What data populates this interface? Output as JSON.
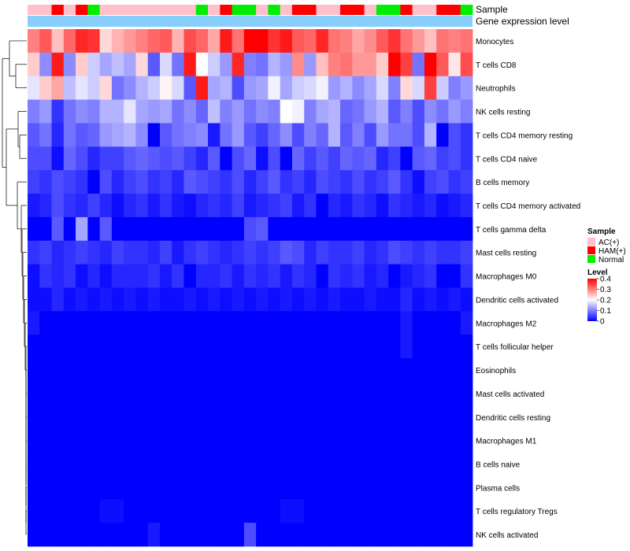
{
  "chart_data": {
    "type": "heatmap",
    "title": "",
    "annotation_tracks": [
      "Sample",
      "Gene expression level"
    ],
    "rows": [
      "Monocytes",
      "T cells CD8",
      "Neutrophils",
      "NK cells resting",
      "T cells CD4 memory resting",
      "T cells CD4 naive",
      "B cells memory",
      "T cells CD4 memory activated",
      "T cells gamma delta",
      "Mast cells resting",
      "Macrophages M0",
      "Dendritic cells activated",
      "Macrophages M2",
      "T cells follicular helper",
      "Eosinophils",
      "Mast cells activated",
      "Dendritic cells resting",
      "Macrophages M1",
      "B cells naive",
      "Plasma cells",
      "T cells regulatory  Tregs",
      "NK cells activated"
    ],
    "sample_groups": [
      "AC",
      "AC",
      "HAM",
      "AC",
      "HAM",
      "N",
      "AC",
      "AC",
      "AC",
      "AC",
      "AC",
      "AC",
      "AC",
      "AC",
      "N",
      "AC",
      "HAM",
      "N",
      "N",
      "AC",
      "N",
      "AC",
      "HAM",
      "HAM",
      "AC",
      "AC",
      "HAM",
      "HAM",
      "AC",
      "N",
      "N",
      "HAM",
      "AC",
      "AC",
      "HAM",
      "HAM",
      "N"
    ],
    "values": [
      [
        0.3,
        0.33,
        0.25,
        0.32,
        0.37,
        0.36,
        0.23,
        0.26,
        0.28,
        0.3,
        0.32,
        0.33,
        0.26,
        0.34,
        0.32,
        0.27,
        0.38,
        0.31,
        0.4,
        0.4,
        0.36,
        0.38,
        0.33,
        0.32,
        0.37,
        0.31,
        0.3,
        0.27,
        0.29,
        0.33,
        0.36,
        0.31,
        0.28,
        0.25,
        0.31,
        0.3,
        0.31
      ],
      [
        0.24,
        0.11,
        0.38,
        0.11,
        0.24,
        0.16,
        0.13,
        0.15,
        0.13,
        0.23,
        0.07,
        0.17,
        0.09,
        0.38,
        0.2,
        0.16,
        0.12,
        0.37,
        0.1,
        0.09,
        0.14,
        0.12,
        0.29,
        0.12,
        0.25,
        0.3,
        0.31,
        0.28,
        0.28,
        0.24,
        0.4,
        0.35,
        0.09,
        0.4,
        0.33,
        0.22,
        0.34
      ],
      [
        0.18,
        0.24,
        0.27,
        0.15,
        0.18,
        0.16,
        0.23,
        0.09,
        0.11,
        0.14,
        0.16,
        0.21,
        0.17,
        0.07,
        0.38,
        0.13,
        0.14,
        0.06,
        0.12,
        0.13,
        0.19,
        0.13,
        0.16,
        0.17,
        0.19,
        0.12,
        0.14,
        0.11,
        0.13,
        0.17,
        0.1,
        0.23,
        0.17,
        0.35,
        0.16,
        0.1,
        0.12
      ],
      [
        0.1,
        0.12,
        0.04,
        0.09,
        0.11,
        0.1,
        0.14,
        0.14,
        0.18,
        0.13,
        0.12,
        0.13,
        0.09,
        0.11,
        0.08,
        0.15,
        0.1,
        0.12,
        0.09,
        0.11,
        0.1,
        0.2,
        0.19,
        0.1,
        0.13,
        0.14,
        0.08,
        0.09,
        0.12,
        0.14,
        0.07,
        0.1,
        0.06,
        0.11,
        0.09,
        0.12,
        0.1
      ],
      [
        0.07,
        0.09,
        0.03,
        0.09,
        0.07,
        0.08,
        0.12,
        0.13,
        0.14,
        0.11,
        0.0,
        0.07,
        0.09,
        0.1,
        0.11,
        0.02,
        0.09,
        0.12,
        0.07,
        0.05,
        0.08,
        0.11,
        0.06,
        0.1,
        0.08,
        0.14,
        0.07,
        0.1,
        0.06,
        0.12,
        0.09,
        0.09,
        0.06,
        0.14,
        0.0,
        0.06,
        0.04
      ],
      [
        0.06,
        0.06,
        0.01,
        0.08,
        0.06,
        0.03,
        0.05,
        0.05,
        0.07,
        0.08,
        0.07,
        0.06,
        0.07,
        0.05,
        0.03,
        0.07,
        0.0,
        0.06,
        0.08,
        0.01,
        0.06,
        0.0,
        0.08,
        0.05,
        0.07,
        0.05,
        0.08,
        0.07,
        0.08,
        0.03,
        0.05,
        0.0,
        0.07,
        0.08,
        0.05,
        0.06,
        0.04
      ],
      [
        0.05,
        0.04,
        0.06,
        0.05,
        0.04,
        0.0,
        0.06,
        0.03,
        0.05,
        0.06,
        0.04,
        0.05,
        0.03,
        0.07,
        0.06,
        0.05,
        0.04,
        0.06,
        0.03,
        0.05,
        0.07,
        0.04,
        0.05,
        0.03,
        0.06,
        0.05,
        0.04,
        0.06,
        0.04,
        0.05,
        0.07,
        0.04,
        0.01,
        0.05,
        0.06,
        0.04,
        0.05
      ],
      [
        0.02,
        0.03,
        0.06,
        0.04,
        0.03,
        0.05,
        0.03,
        0.01,
        0.03,
        0.04,
        0.02,
        0.04,
        0.02,
        0.01,
        0.03,
        0.04,
        0.03,
        0.05,
        0.02,
        0.03,
        0.04,
        0.05,
        0.02,
        0.04,
        0.0,
        0.03,
        0.02,
        0.04,
        0.03,
        0.01,
        0.04,
        0.03,
        0.02,
        0.03,
        0.01,
        0.02,
        0.03
      ],
      [
        0.0,
        0.0,
        0.07,
        0.0,
        0.13,
        0.0,
        0.07,
        0.0,
        0.0,
        0.0,
        0.0,
        0.0,
        0.0,
        0.0,
        0.0,
        0.0,
        0.0,
        0.0,
        0.06,
        0.07,
        0.0,
        0.0,
        0.0,
        0.0,
        0.0,
        0.0,
        0.0,
        0.0,
        0.0,
        0.0,
        0.0,
        0.0,
        0.0,
        0.0,
        0.0,
        0.0,
        0.0
      ],
      [
        0.04,
        0.05,
        0.03,
        0.04,
        0.05,
        0.04,
        0.03,
        0.05,
        0.04,
        0.04,
        0.03,
        0.05,
        0.02,
        0.04,
        0.05,
        0.04,
        0.03,
        0.04,
        0.05,
        0.04,
        0.05,
        0.07,
        0.06,
        0.03,
        0.05,
        0.04,
        0.04,
        0.05,
        0.03,
        0.04,
        0.06,
        0.05,
        0.04,
        0.05,
        0.04,
        0.04,
        0.05
      ],
      [
        0.01,
        0.04,
        0.03,
        0.04,
        0.01,
        0.03,
        0.01,
        0.03,
        0.03,
        0.03,
        0.04,
        0.02,
        0.04,
        0.0,
        0.03,
        0.03,
        0.04,
        0.02,
        0.04,
        0.03,
        0.04,
        0.02,
        0.04,
        0.03,
        0.0,
        0.04,
        0.03,
        0.04,
        0.02,
        0.03,
        0.0,
        0.02,
        0.03,
        0.04,
        0.0,
        0.0,
        0.04
      ],
      [
        0.01,
        0.01,
        0.03,
        0.01,
        0.02,
        0.01,
        0.02,
        0.01,
        0.02,
        0.01,
        0.02,
        0.01,
        0.01,
        0.02,
        0.01,
        0.02,
        0.01,
        0.02,
        0.01,
        0.02,
        0.01,
        0.02,
        0.01,
        0.02,
        0.01,
        0.02,
        0.01,
        0.01,
        0.02,
        0.01,
        0.01,
        0.03,
        0.01,
        0.02,
        0.01,
        0.02,
        0.01
      ],
      [
        0.02,
        0.0,
        0.0,
        0.0,
        0.0,
        0.0,
        0.0,
        0.0,
        0.0,
        0.0,
        0.0,
        0.0,
        0.0,
        0.0,
        0.0,
        0.0,
        0.0,
        0.0,
        0.0,
        0.0,
        0.0,
        0.0,
        0.0,
        0.0,
        0.0,
        0.0,
        0.0,
        0.0,
        0.0,
        0.0,
        0.0,
        0.02,
        0.0,
        0.0,
        0.0,
        0.0,
        0.02
      ],
      [
        0.0,
        0.0,
        0.0,
        0.0,
        0.0,
        0.0,
        0.0,
        0.0,
        0.0,
        0.0,
        0.0,
        0.0,
        0.0,
        0.0,
        0.0,
        0.0,
        0.0,
        0.0,
        0.0,
        0.0,
        0.0,
        0.0,
        0.0,
        0.0,
        0.0,
        0.0,
        0.0,
        0.0,
        0.0,
        0.0,
        0.0,
        0.02,
        0.0,
        0.0,
        0.0,
        0.0,
        0.0
      ],
      [
        0.0,
        0.0,
        0.0,
        0.0,
        0.0,
        0.0,
        0.0,
        0.0,
        0.0,
        0.0,
        0.0,
        0.0,
        0.0,
        0.0,
        0.0,
        0.0,
        0.0,
        0.0,
        0.0,
        0.0,
        0.0,
        0.0,
        0.0,
        0.0,
        0.0,
        0.0,
        0.0,
        0.0,
        0.0,
        0.0,
        0.0,
        0.0,
        0.0,
        0.0,
        0.0,
        0.0,
        0.0
      ],
      [
        0.0,
        0.0,
        0.0,
        0.0,
        0.0,
        0.0,
        0.0,
        0.0,
        0.0,
        0.0,
        0.0,
        0.0,
        0.0,
        0.0,
        0.0,
        0.0,
        0.0,
        0.0,
        0.0,
        0.0,
        0.0,
        0.0,
        0.0,
        0.0,
        0.0,
        0.0,
        0.0,
        0.0,
        0.0,
        0.0,
        0.0,
        0.0,
        0.0,
        0.0,
        0.0,
        0.0,
        0.0
      ],
      [
        0.0,
        0.0,
        0.0,
        0.0,
        0.0,
        0.0,
        0.0,
        0.0,
        0.0,
        0.0,
        0.0,
        0.0,
        0.0,
        0.0,
        0.0,
        0.0,
        0.0,
        0.0,
        0.0,
        0.0,
        0.0,
        0.0,
        0.0,
        0.0,
        0.0,
        0.0,
        0.0,
        0.0,
        0.0,
        0.0,
        0.0,
        0.0,
        0.0,
        0.0,
        0.0,
        0.0,
        0.0
      ],
      [
        0.0,
        0.0,
        0.0,
        0.0,
        0.0,
        0.0,
        0.0,
        0.0,
        0.0,
        0.0,
        0.0,
        0.0,
        0.0,
        0.0,
        0.0,
        0.0,
        0.0,
        0.0,
        0.0,
        0.0,
        0.0,
        0.0,
        0.0,
        0.0,
        0.0,
        0.0,
        0.0,
        0.0,
        0.0,
        0.0,
        0.0,
        0.0,
        0.0,
        0.0,
        0.0,
        0.0,
        0.0
      ],
      [
        0.0,
        0.0,
        0.0,
        0.0,
        0.0,
        0.0,
        0.0,
        0.0,
        0.0,
        0.0,
        0.0,
        0.0,
        0.0,
        0.0,
        0.0,
        0.0,
        0.0,
        0.0,
        0.0,
        0.0,
        0.0,
        0.0,
        0.0,
        0.0,
        0.0,
        0.0,
        0.0,
        0.0,
        0.0,
        0.0,
        0.0,
        0.0,
        0.0,
        0.0,
        0.0,
        0.0,
        0.0
      ],
      [
        0.0,
        0.0,
        0.0,
        0.0,
        0.0,
        0.0,
        0.0,
        0.0,
        0.0,
        0.0,
        0.0,
        0.0,
        0.0,
        0.0,
        0.0,
        0.0,
        0.0,
        0.0,
        0.0,
        0.0,
        0.0,
        0.0,
        0.0,
        0.0,
        0.0,
        0.0,
        0.0,
        0.0,
        0.0,
        0.0,
        0.0,
        0.0,
        0.0,
        0.0,
        0.0,
        0.0,
        0.0
      ],
      [
        0.0,
        0.0,
        0.0,
        0.0,
        0.0,
        0.0,
        0.01,
        0.01,
        0.0,
        0.0,
        0.0,
        0.0,
        0.0,
        0.0,
        0.0,
        0.0,
        0.0,
        0.0,
        0.0,
        0.0,
        0.0,
        0.01,
        0.01,
        0.0,
        0.0,
        0.0,
        0.0,
        0.0,
        0.0,
        0.0,
        0.0,
        0.0,
        0.0,
        0.0,
        0.0,
        0.0,
        0.0
      ],
      [
        0.0,
        0.0,
        0.0,
        0.0,
        0.0,
        0.0,
        0.0,
        0.0,
        0.0,
        0.0,
        0.02,
        0.0,
        0.0,
        0.0,
        0.0,
        0.0,
        0.0,
        0.0,
        0.06,
        0.0,
        0.0,
        0.0,
        0.0,
        0.0,
        0.0,
        0.0,
        0.0,
        0.0,
        0.0,
        0.0,
        0.0,
        0.0,
        0.0,
        0.0,
        0.0,
        0.0,
        0.0
      ]
    ],
    "legend": {
      "sample": {
        "title": "Sample",
        "entries": [
          {
            "key": "AC",
            "label": "AC(+)",
            "color": "#ffc0cb"
          },
          {
            "key": "HAM",
            "label": "HAM(+)",
            "color": "#ff0000"
          },
          {
            "key": "N",
            "label": "Normal",
            "color": "#00ee00"
          }
        ]
      },
      "level": {
        "title": "Level",
        "ticks": [
          "0.4",
          "0.3",
          "0.2",
          "0.1",
          "0"
        ],
        "tick_values": [
          0.4,
          0.3,
          0.2,
          0.1,
          0
        ],
        "colormap": {
          "min": 0,
          "mid": 0.2,
          "max": 0.4,
          "low_color": "#0000ff",
          "mid_color": "#ffffff",
          "high_color": "#ff0000"
        }
      }
    },
    "gene_expression_color": "#87cefa"
  }
}
